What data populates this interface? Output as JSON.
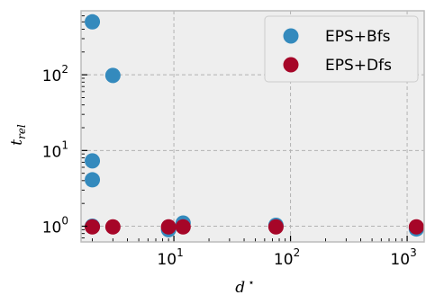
{
  "chart_data": {
    "type": "scatter",
    "title": "",
    "xlabel": {
      "main": "d",
      "sup": "⋆"
    },
    "ylabel": {
      "main": "t",
      "sub": "rel"
    },
    "xscale": "log",
    "yscale": "log",
    "xlim": [
      1.6,
      1400
    ],
    "ylim": [
      0.62,
      700
    ],
    "x_ticks": [
      {
        "value": 10,
        "base": "10",
        "exp": "1"
      },
      {
        "value": 100,
        "base": "10",
        "exp": "2"
      },
      {
        "value": 1000,
        "base": "10",
        "exp": "3"
      }
    ],
    "y_ticks": [
      {
        "value": 1,
        "base": "10",
        "exp": "0"
      },
      {
        "value": 10,
        "base": "10",
        "exp": "1"
      },
      {
        "value": 100,
        "base": "10",
        "exp": "2"
      }
    ],
    "grid": true,
    "legend_position": "top-right",
    "series": [
      {
        "name": "EPS+Bfs",
        "color": "#348abd",
        "points": [
          [
            2,
            500
          ],
          [
            3,
            98
          ],
          [
            2,
            7.3
          ],
          [
            2,
            4.1
          ],
          [
            2,
            1.0
          ],
          [
            9,
            0.9
          ],
          [
            12,
            1.1
          ],
          [
            75,
            1.03
          ],
          [
            1200,
            0.92
          ]
        ]
      },
      {
        "name": "EPS+Dfs",
        "color": "#a60628",
        "points": [
          [
            2,
            0.98
          ],
          [
            3,
            0.98
          ],
          [
            9,
            0.98
          ],
          [
            12,
            0.98
          ],
          [
            75,
            0.98
          ],
          [
            1200,
            0.98
          ]
        ]
      }
    ]
  }
}
